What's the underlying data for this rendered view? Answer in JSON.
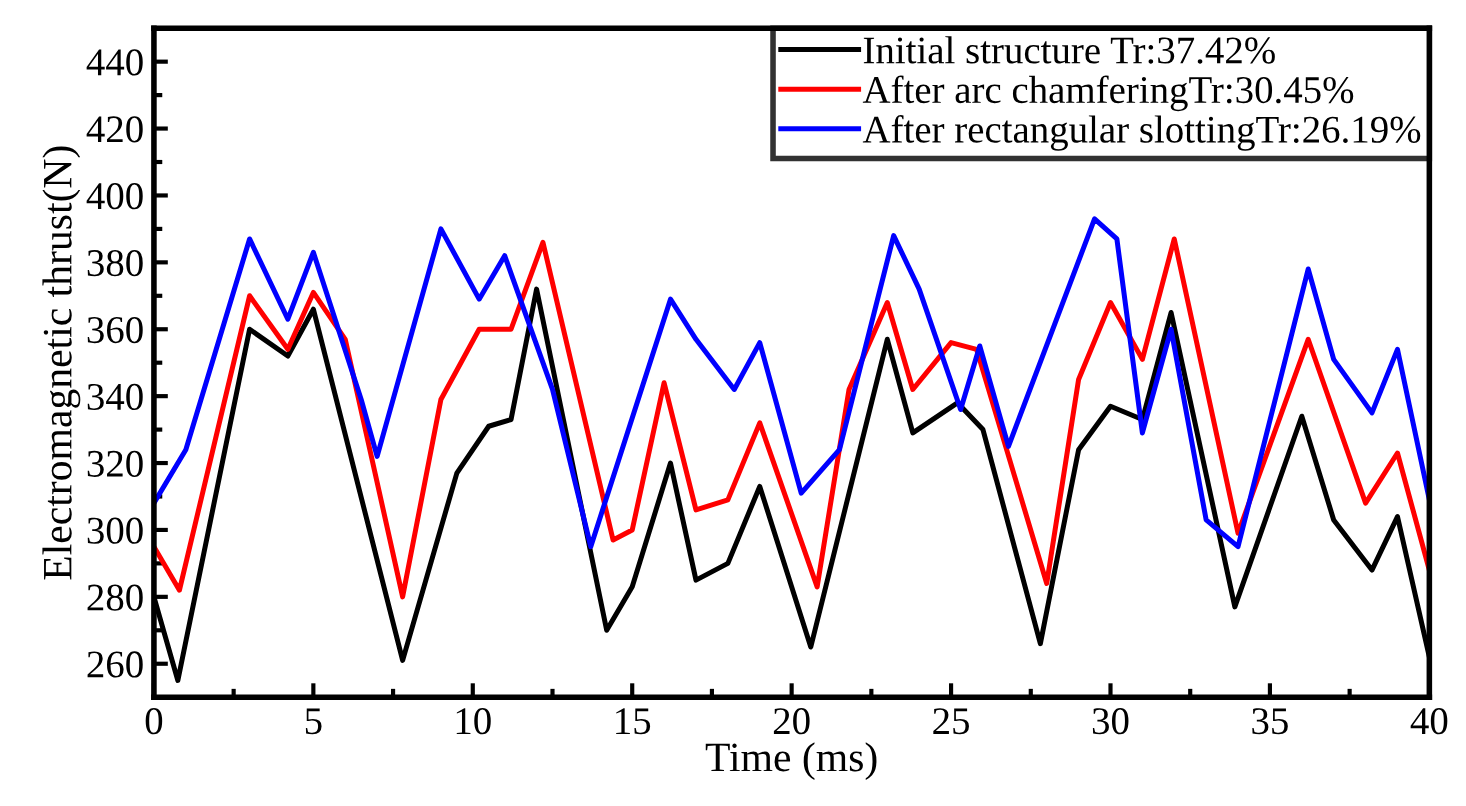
{
  "chart_data": {
    "type": "line",
    "xlabel": "Time (ms)",
    "ylabel": "Electromagnetic thrust(N)",
    "xlim": [
      0,
      40
    ],
    "xticks": [
      0,
      5,
      10,
      15,
      20,
      25,
      30,
      35,
      40
    ],
    "ylim": [
      250,
      450
    ],
    "yticks": [
      260,
      280,
      300,
      320,
      340,
      360,
      380,
      400,
      420,
      440
    ],
    "legend": "top right",
    "grid": false,
    "line_style": "solid",
    "marker": "none",
    "series": [
      {
        "name": "Initial structure Tr:37.42%",
        "color": "#000000",
        "x": [
          0,
          0.75,
          3,
          4.2,
          5,
          7.8,
          9.5,
          10.5,
          11.2,
          12,
          14.2,
          15,
          16.2,
          17,
          18,
          19,
          20.6,
          23,
          23.8,
          25.2,
          26,
          27.8,
          29,
          30,
          31,
          31.9,
          33.9,
          36,
          37,
          38.2,
          39,
          40
        ],
        "values": [
          280,
          255,
          360,
          352,
          366,
          261,
          317,
          331,
          333,
          372,
          270,
          283,
          320,
          285,
          290,
          313,
          265,
          357,
          329,
          338,
          330,
          266,
          324,
          337,
          333,
          365,
          277,
          334,
          303,
          288,
          304,
          262
        ]
      },
      {
        "name": "After arc chamferingTr:30.45%",
        "color": "#ff0000",
        "x": [
          0,
          0.8,
          3,
          4.2,
          5,
          6,
          7.8,
          9,
          10.2,
          11.2,
          12.2,
          14.4,
          15,
          16,
          17,
          18,
          19,
          20.8,
          21.8,
          23,
          23.8,
          25,
          25.8,
          28,
          29,
          30,
          31,
          32,
          34,
          36.2,
          38,
          39,
          40
        ],
        "values": [
          295,
          282,
          370,
          354,
          371,
          357,
          280,
          339,
          360,
          360,
          386,
          297,
          300,
          344,
          306,
          309,
          332,
          283,
          342,
          368,
          342,
          356,
          354,
          284,
          345,
          368,
          351,
          387,
          299,
          357,
          308,
          323,
          288
        ]
      },
      {
        "name": "After rectangular slottingTr:26.19%",
        "color": "#0000ff",
        "x": [
          0,
          1,
          3,
          4.2,
          5,
          6.5,
          7,
          9,
          10.2,
          11,
          12.5,
          13.7,
          16.2,
          17,
          18.2,
          19,
          20.3,
          21.5,
          23.2,
          24,
          25.3,
          25.9,
          26.8,
          29.5,
          30.2,
          31,
          31.9,
          33,
          34,
          36.2,
          37,
          38.2,
          39,
          40
        ],
        "values": [
          308,
          324,
          387,
          363,
          383,
          339,
          322,
          390,
          369,
          382,
          342,
          295,
          369,
          357,
          342,
          356,
          311,
          324,
          388,
          372,
          336,
          355,
          325,
          393,
          387,
          329,
          360,
          303,
          295,
          378,
          351,
          335,
          354,
          309
        ]
      }
    ]
  }
}
